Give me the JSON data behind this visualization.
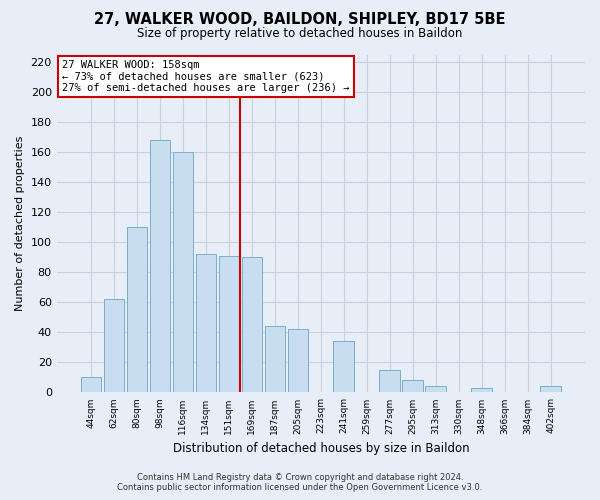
{
  "title": "27, WALKER WOOD, BAILDON, SHIPLEY, BD17 5BE",
  "subtitle": "Size of property relative to detached houses in Baildon",
  "xlabel": "Distribution of detached houses by size in Baildon",
  "ylabel": "Number of detached properties",
  "bar_labels": [
    "44sqm",
    "62sqm",
    "80sqm",
    "98sqm",
    "116sqm",
    "134sqm",
    "151sqm",
    "169sqm",
    "187sqm",
    "205sqm",
    "223sqm",
    "241sqm",
    "259sqm",
    "277sqm",
    "295sqm",
    "313sqm",
    "330sqm",
    "348sqm",
    "366sqm",
    "384sqm",
    "402sqm"
  ],
  "bar_values": [
    10,
    62,
    110,
    168,
    160,
    92,
    91,
    90,
    44,
    42,
    0,
    34,
    0,
    15,
    8,
    4,
    0,
    3,
    0,
    0,
    4
  ],
  "bar_color": "#c8ddef",
  "bar_edgecolor": "#7aaecb",
  "ylim": [
    0,
    225
  ],
  "yticks": [
    0,
    20,
    40,
    60,
    80,
    100,
    120,
    140,
    160,
    180,
    200,
    220
  ],
  "vline_color": "#cc0000",
  "annotation_title": "27 WALKER WOOD: 158sqm",
  "annotation_line1": "← 73% of detached houses are smaller (623)",
  "annotation_line2": "27% of semi-detached houses are larger (236) →",
  "annotation_box_facecolor": "#ffffff",
  "annotation_box_edgecolor": "#cc0000",
  "footer_line1": "Contains HM Land Registry data © Crown copyright and database right 2024.",
  "footer_line2": "Contains public sector information licensed under the Open Government Licence v3.0.",
  "bg_color": "#e8eef8",
  "grid_color": "#c8d0e0"
}
